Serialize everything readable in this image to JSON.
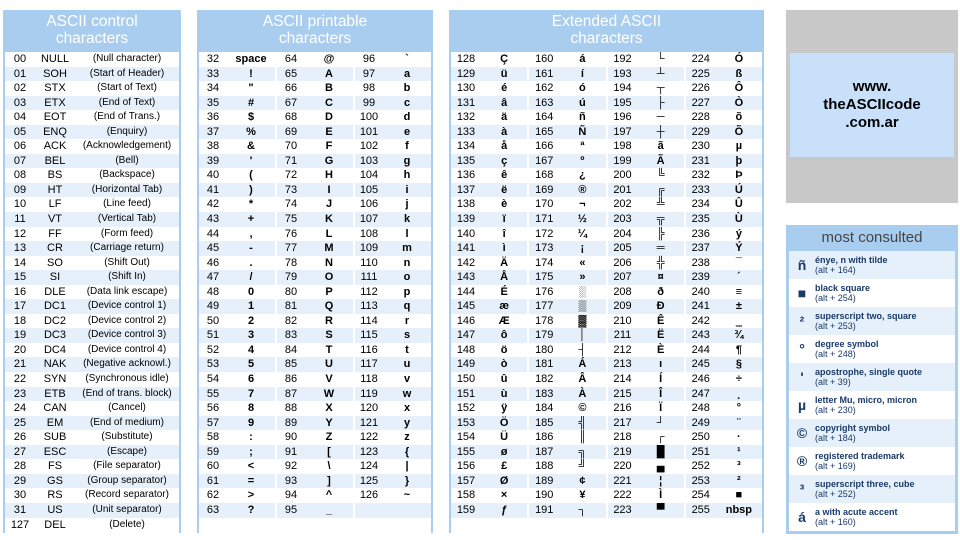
{
  "control": {
    "header": "ASCII control characters",
    "rows": [
      [
        "00",
        "NULL",
        "(Null character)"
      ],
      [
        "01",
        "SOH",
        "(Start of Header)"
      ],
      [
        "02",
        "STX",
        "(Start of Text)"
      ],
      [
        "03",
        "ETX",
        "(End of Text)"
      ],
      [
        "04",
        "EOT",
        "(End of Trans.)"
      ],
      [
        "05",
        "ENQ",
        "(Enquiry)"
      ],
      [
        "06",
        "ACK",
        "(Acknowledgement)"
      ],
      [
        "07",
        "BEL",
        "(Bell)"
      ],
      [
        "08",
        "BS",
        "(Backspace)"
      ],
      [
        "09",
        "HT",
        "(Horizontal Tab)"
      ],
      [
        "10",
        "LF",
        "(Line feed)"
      ],
      [
        "11",
        "VT",
        "(Vertical Tab)"
      ],
      [
        "12",
        "FF",
        "(Form feed)"
      ],
      [
        "13",
        "CR",
        "(Carriage return)"
      ],
      [
        "14",
        "SO",
        "(Shift Out)"
      ],
      [
        "15",
        "SI",
        "(Shift In)"
      ],
      [
        "16",
        "DLE",
        "(Data link escape)"
      ],
      [
        "17",
        "DC1",
        "(Device control 1)"
      ],
      [
        "18",
        "DC2",
        "(Device control 2)"
      ],
      [
        "19",
        "DC3",
        "(Device control 3)"
      ],
      [
        "20",
        "DC4",
        "(Device control 4)"
      ],
      [
        "21",
        "NAK",
        "(Negative acknowl.)"
      ],
      [
        "22",
        "SYN",
        "(Synchronous idle)"
      ],
      [
        "23",
        "ETB",
        "(End of trans. block)"
      ],
      [
        "24",
        "CAN",
        "(Cancel)"
      ],
      [
        "25",
        "EM",
        "(End of medium)"
      ],
      [
        "26",
        "SUB",
        "(Substitute)"
      ],
      [
        "27",
        "ESC",
        "(Escape)"
      ],
      [
        "28",
        "FS",
        "(File separator)"
      ],
      [
        "29",
        "GS",
        "(Group separator)"
      ],
      [
        "30",
        "RS",
        "(Record separator)"
      ],
      [
        "31",
        "US",
        "(Unit separator)"
      ],
      [
        "127",
        "DEL",
        "(Delete)"
      ]
    ]
  },
  "printable": {
    "header": "ASCII printable characters",
    "columns": [
      [
        [
          "32",
          "space"
        ],
        [
          "33",
          "!"
        ],
        [
          "34",
          "\""
        ],
        [
          "35",
          "#"
        ],
        [
          "36",
          "$"
        ],
        [
          "37",
          "%"
        ],
        [
          "38",
          "&"
        ],
        [
          "39",
          "'"
        ],
        [
          "40",
          "("
        ],
        [
          "41",
          ")"
        ],
        [
          "42",
          "*"
        ],
        [
          "43",
          "+"
        ],
        [
          "44",
          ","
        ],
        [
          "45",
          "-"
        ],
        [
          "46",
          "."
        ],
        [
          "47",
          "/"
        ],
        [
          "48",
          "0"
        ],
        [
          "49",
          "1"
        ],
        [
          "50",
          "2"
        ],
        [
          "51",
          "3"
        ],
        [
          "52",
          "4"
        ],
        [
          "53",
          "5"
        ],
        [
          "54",
          "6"
        ],
        [
          "55",
          "7"
        ],
        [
          "56",
          "8"
        ],
        [
          "57",
          "9"
        ],
        [
          "58",
          ":"
        ],
        [
          "59",
          ";"
        ],
        [
          "60",
          "<"
        ],
        [
          "61",
          "="
        ],
        [
          "62",
          ">"
        ],
        [
          "63",
          "?"
        ]
      ],
      [
        [
          "64",
          "@"
        ],
        [
          "65",
          "A"
        ],
        [
          "66",
          "B"
        ],
        [
          "67",
          "C"
        ],
        [
          "68",
          "D"
        ],
        [
          "69",
          "E"
        ],
        [
          "70",
          "F"
        ],
        [
          "71",
          "G"
        ],
        [
          "72",
          "H"
        ],
        [
          "73",
          "I"
        ],
        [
          "74",
          "J"
        ],
        [
          "75",
          "K"
        ],
        [
          "76",
          "L"
        ],
        [
          "77",
          "M"
        ],
        [
          "78",
          "N"
        ],
        [
          "79",
          "O"
        ],
        [
          "80",
          "P"
        ],
        [
          "81",
          "Q"
        ],
        [
          "82",
          "R"
        ],
        [
          "83",
          "S"
        ],
        [
          "84",
          "T"
        ],
        [
          "85",
          "U"
        ],
        [
          "86",
          "V"
        ],
        [
          "87",
          "W"
        ],
        [
          "88",
          "X"
        ],
        [
          "89",
          "Y"
        ],
        [
          "90",
          "Z"
        ],
        [
          "91",
          "["
        ],
        [
          "92",
          "\\"
        ],
        [
          "93",
          "]"
        ],
        [
          "94",
          "^"
        ],
        [
          "95",
          "_"
        ]
      ],
      [
        [
          "96",
          "`"
        ],
        [
          "97",
          "a"
        ],
        [
          "98",
          "b"
        ],
        [
          "99",
          "c"
        ],
        [
          "100",
          "d"
        ],
        [
          "101",
          "e"
        ],
        [
          "102",
          "f"
        ],
        [
          "103",
          "g"
        ],
        [
          "104",
          "h"
        ],
        [
          "105",
          "i"
        ],
        [
          "106",
          "j"
        ],
        [
          "107",
          "k"
        ],
        [
          "108",
          "l"
        ],
        [
          "109",
          "m"
        ],
        [
          "110",
          "n"
        ],
        [
          "111",
          "o"
        ],
        [
          "112",
          "p"
        ],
        [
          "113",
          "q"
        ],
        [
          "114",
          "r"
        ],
        [
          "115",
          "s"
        ],
        [
          "116",
          "t"
        ],
        [
          "117",
          "u"
        ],
        [
          "118",
          "v"
        ],
        [
          "119",
          "w"
        ],
        [
          "120",
          "x"
        ],
        [
          "121",
          "y"
        ],
        [
          "122",
          "z"
        ],
        [
          "123",
          "{"
        ],
        [
          "124",
          "|"
        ],
        [
          "125",
          "}"
        ],
        [
          "126",
          "~"
        ]
      ]
    ]
  },
  "extended": {
    "header": "Extended ASCII characters",
    "columns": [
      [
        [
          "128",
          "Ç"
        ],
        [
          "129",
          "ü"
        ],
        [
          "130",
          "é"
        ],
        [
          "131",
          "â"
        ],
        [
          "132",
          "ä"
        ],
        [
          "133",
          "à"
        ],
        [
          "134",
          "å"
        ],
        [
          "135",
          "ç"
        ],
        [
          "136",
          "ê"
        ],
        [
          "137",
          "ë"
        ],
        [
          "138",
          "è"
        ],
        [
          "139",
          "ï"
        ],
        [
          "140",
          "î"
        ],
        [
          "141",
          "ì"
        ],
        [
          "142",
          "Ä"
        ],
        [
          "143",
          "Å"
        ],
        [
          "144",
          "É"
        ],
        [
          "145",
          "æ"
        ],
        [
          "146",
          "Æ"
        ],
        [
          "147",
          "ô"
        ],
        [
          "148",
          "ö"
        ],
        [
          "149",
          "ò"
        ],
        [
          "150",
          "û"
        ],
        [
          "151",
          "ù"
        ],
        [
          "152",
          "ÿ"
        ],
        [
          "153",
          "Ö"
        ],
        [
          "154",
          "Ü"
        ],
        [
          "155",
          "ø"
        ],
        [
          "156",
          "£"
        ],
        [
          "157",
          "Ø"
        ],
        [
          "158",
          "×"
        ],
        [
          "159",
          "ƒ"
        ]
      ],
      [
        [
          "160",
          "á"
        ],
        [
          "161",
          "í"
        ],
        [
          "162",
          "ó"
        ],
        [
          "163",
          "ú"
        ],
        [
          "164",
          "ñ"
        ],
        [
          "165",
          "Ñ"
        ],
        [
          "166",
          "ª"
        ],
        [
          "167",
          "º"
        ],
        [
          "168",
          "¿"
        ],
        [
          "169",
          "®"
        ],
        [
          "170",
          "¬"
        ],
        [
          "171",
          "½"
        ],
        [
          "172",
          "¼"
        ],
        [
          "173",
          "¡"
        ],
        [
          "174",
          "«"
        ],
        [
          "175",
          "»"
        ],
        [
          "176",
          "░"
        ],
        [
          "177",
          "▒"
        ],
        [
          "178",
          "▓"
        ],
        [
          "179",
          "│"
        ],
        [
          "180",
          "┤"
        ],
        [
          "181",
          "Á"
        ],
        [
          "182",
          "Â"
        ],
        [
          "183",
          "À"
        ],
        [
          "184",
          "©"
        ],
        [
          "185",
          "╣"
        ],
        [
          "186",
          "║"
        ],
        [
          "187",
          "╗"
        ],
        [
          "188",
          "╝"
        ],
        [
          "189",
          "¢"
        ],
        [
          "190",
          "¥"
        ],
        [
          "191",
          "┐"
        ]
      ],
      [
        [
          "192",
          "└"
        ],
        [
          "193",
          "┴"
        ],
        [
          "194",
          "┬"
        ],
        [
          "195",
          "├"
        ],
        [
          "196",
          "─"
        ],
        [
          "197",
          "┼"
        ],
        [
          "198",
          "ã"
        ],
        [
          "199",
          "Ã"
        ],
        [
          "200",
          "╚"
        ],
        [
          "201",
          "╔"
        ],
        [
          "202",
          "╩"
        ],
        [
          "203",
          "╦"
        ],
        [
          "204",
          "╠"
        ],
        [
          "205",
          "═"
        ],
        [
          "206",
          "╬"
        ],
        [
          "207",
          "¤"
        ],
        [
          "208",
          "ð"
        ],
        [
          "209",
          "Ð"
        ],
        [
          "210",
          "Ê"
        ],
        [
          "211",
          "Ë"
        ],
        [
          "212",
          "È"
        ],
        [
          "213",
          "ı"
        ],
        [
          "214",
          "Í"
        ],
        [
          "215",
          "Î"
        ],
        [
          "216",
          "Ï"
        ],
        [
          "217",
          "┘"
        ],
        [
          "218",
          "┌"
        ],
        [
          "219",
          "█"
        ],
        [
          "220",
          "▄"
        ],
        [
          "221",
          "¦"
        ],
        [
          "222",
          "Ì"
        ],
        [
          "223",
          "▀"
        ]
      ],
      [
        [
          "224",
          "Ó"
        ],
        [
          "225",
          "ß"
        ],
        [
          "226",
          "Ô"
        ],
        [
          "227",
          "Ò"
        ],
        [
          "228",
          "õ"
        ],
        [
          "229",
          "Õ"
        ],
        [
          "230",
          "µ"
        ],
        [
          "231",
          "þ"
        ],
        [
          "232",
          "Þ"
        ],
        [
          "233",
          "Ú"
        ],
        [
          "234",
          "Û"
        ],
        [
          "235",
          "Ù"
        ],
        [
          "236",
          "ý"
        ],
        [
          "237",
          "Ý"
        ],
        [
          "238",
          "¯"
        ],
        [
          "239",
          "´"
        ],
        [
          "240",
          "≡"
        ],
        [
          "241",
          "±"
        ],
        [
          "242",
          "‗"
        ],
        [
          "243",
          "¾"
        ],
        [
          "244",
          "¶"
        ],
        [
          "245",
          "§"
        ],
        [
          "246",
          "÷"
        ],
        [
          "247",
          "¸"
        ],
        [
          "248",
          "°"
        ],
        [
          "249",
          "¨"
        ],
        [
          "250",
          "·"
        ],
        [
          "251",
          "¹"
        ],
        [
          "252",
          "³"
        ],
        [
          "253",
          "²"
        ],
        [
          "254",
          "■"
        ],
        [
          "255",
          "nbsp"
        ]
      ]
    ]
  },
  "logo": {
    "line1": "www.",
    "line2": "theASCIIcode",
    "line3": ".com.ar"
  },
  "most_consulted": {
    "title": "most consulted",
    "items": [
      {
        "symbol": "ñ",
        "name": "énye, n with tilde",
        "code": "(alt + 164)"
      },
      {
        "symbol": "■",
        "name": "black square",
        "code": "(alt + 254)"
      },
      {
        "symbol": "²",
        "name": "superscript two, square",
        "code": "(alt + 253)"
      },
      {
        "symbol": "°",
        "name": "degree symbol",
        "code": "(alt + 248)"
      },
      {
        "symbol": "'",
        "name": "apostrophe, single quote",
        "code": "(alt + 39)"
      },
      {
        "symbol": "µ",
        "name": "letter Mu, micro, micron",
        "code": "(alt + 230)"
      },
      {
        "symbol": "©",
        "name": "copyright symbol",
        "code": "(alt + 184)"
      },
      {
        "symbol": "®",
        "name": "registered trademark",
        "code": "(alt + 169)"
      },
      {
        "symbol": "³",
        "name": "superscript three, cube",
        "code": "(alt + 252)"
      },
      {
        "symbol": "á",
        "name": "a with acute accent",
        "code": "(alt + 160)"
      }
    ]
  }
}
